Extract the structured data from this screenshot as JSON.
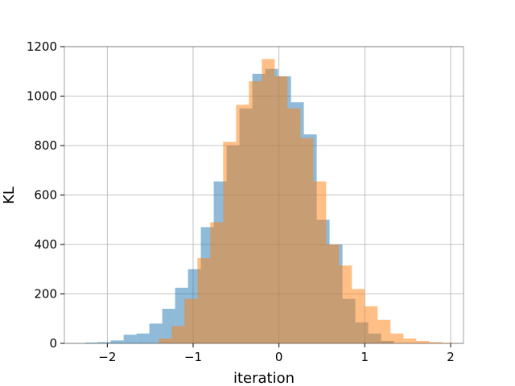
{
  "chart_data": {
    "type": "histogram",
    "xlabel": "iteration",
    "ylabel": "KL",
    "xlim": [
      -2.5,
      2.15
    ],
    "ylim": [
      0,
      1200
    ],
    "xticks": [
      -2,
      -1,
      0,
      1,
      2
    ],
    "xtick_labels": [
      "−2",
      "−1",
      "0",
      "1",
      "2"
    ],
    "yticks": [
      0,
      200,
      400,
      600,
      800,
      1000,
      1200
    ],
    "ytick_labels": [
      "0",
      "200",
      "400",
      "600",
      "800",
      "1000",
      "1200"
    ],
    "grid": true,
    "alpha": 0.5,
    "series": [
      {
        "color": "#1f77b4",
        "bin_edges": [
          -2.26,
          -2.11,
          -1.96,
          -1.81,
          -1.66,
          -1.51,
          -1.36,
          -1.21,
          -1.06,
          -0.91,
          -0.76,
          -0.61,
          -0.46,
          -0.31,
          -0.16,
          -0.01,
          0.14,
          0.29,
          0.44,
          0.59,
          0.74,
          0.89,
          1.04,
          1.19,
          1.34
        ],
        "counts": [
          3,
          5,
          12,
          35,
          40,
          80,
          140,
          225,
          300,
          470,
          655,
          800,
          950,
          1090,
          1110,
          1080,
          975,
          845,
          500,
          400,
          180,
          85,
          40,
          10
        ]
      },
      {
        "color": "#ff7f0e",
        "bin_edges": [
          -1.4,
          -1.25,
          -1.1,
          -0.95,
          -0.8,
          -0.65,
          -0.5,
          -0.35,
          -0.2,
          -0.05,
          0.1,
          0.25,
          0.4,
          0.55,
          0.7,
          0.85,
          1.0,
          1.15,
          1.3,
          1.45,
          1.6,
          1.75,
          1.9,
          2.05
        ],
        "counts": [
          20,
          70,
          180,
          345,
          490,
          815,
          965,
          1060,
          1150,
          1080,
          950,
          830,
          655,
          400,
          315,
          220,
          150,
          95,
          40,
          20,
          10,
          5,
          2
        ]
      }
    ]
  }
}
